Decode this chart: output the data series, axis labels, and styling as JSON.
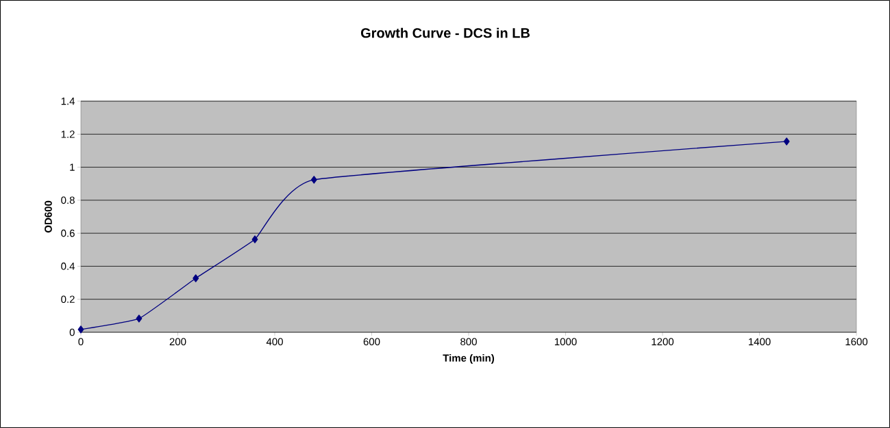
{
  "chart_data": {
    "type": "line",
    "title": "Growth Curve - DCS in LB",
    "xlabel": "Time (min)",
    "ylabel": "OD600",
    "x": [
      0,
      120,
      237,
      359,
      481,
      1456
    ],
    "series": [
      {
        "color": "#000080",
        "values": [
          0.017,
          0.083,
          0.327,
          0.563,
          0.924,
          1.156
        ]
      }
    ],
    "xlim": [
      0,
      1600
    ],
    "xticks": [
      0,
      200,
      400,
      600,
      800,
      1000,
      1200,
      1400,
      1600
    ],
    "ylim": [
      0,
      1.4
    ],
    "yticks": [
      0,
      0.2,
      0.4,
      0.6,
      0.8,
      1,
      1.2,
      1.4
    ],
    "grid": "y",
    "marker": "diamond",
    "line_style": "solid"
  }
}
